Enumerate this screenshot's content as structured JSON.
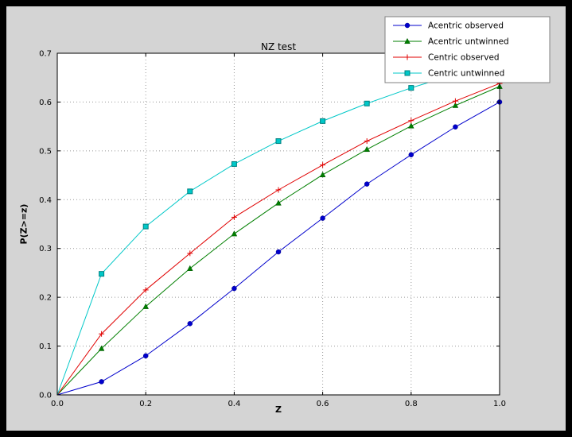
{
  "window": {
    "outer_bg": "#000000",
    "figure_bg": "#d4d4d4"
  },
  "chart_data": {
    "type": "line",
    "title": "NZ test",
    "xlabel": "Z",
    "ylabel": "P(Z>=z)",
    "xlim": [
      0.0,
      1.0
    ],
    "ylim": [
      0.0,
      0.7
    ],
    "xticks": [
      0.0,
      0.2,
      0.4,
      0.6,
      0.8,
      1.0
    ],
    "yticks": [
      0.0,
      0.1,
      0.2,
      0.3,
      0.4,
      0.5,
      0.6,
      0.7
    ],
    "grid": {
      "on": true,
      "style": "dotted",
      "color": "#999999"
    },
    "plot_bg": "#ffffff",
    "frame_color": "#000000",
    "legend_position": "upper-right",
    "x": [
      0.0,
      0.1,
      0.2,
      0.3,
      0.4,
      0.5,
      0.6,
      0.7,
      0.8,
      0.9,
      1.0
    ],
    "series": [
      {
        "name": "Acentric observed",
        "color": "#0000cc",
        "marker": "circle",
        "marker_edge": "#000088",
        "values": [
          0.0,
          0.027,
          0.08,
          0.146,
          0.218,
          0.293,
          0.362,
          0.432,
          0.492,
          0.549,
          0.6
        ]
      },
      {
        "name": "Acentric untwinned",
        "color": "#007f00",
        "marker": "triangle-up",
        "marker_edge": "#005500",
        "values": [
          0.0,
          0.095,
          0.181,
          0.259,
          0.33,
          0.393,
          0.451,
          0.503,
          0.551,
          0.593,
          0.632
        ]
      },
      {
        "name": "Centric observed",
        "color": "#e00000",
        "marker": "plus",
        "marker_edge": "#e00000",
        "values": [
          0.0,
          0.125,
          0.215,
          0.29,
          0.364,
          0.42,
          0.471,
          0.52,
          0.562,
          0.602,
          0.638
        ]
      },
      {
        "name": "Centric untwinned",
        "color": "#00c8c8",
        "marker": "square",
        "marker_edge": "#008080",
        "values": [
          0.0,
          0.248,
          0.345,
          0.417,
          0.473,
          0.52,
          0.561,
          0.597,
          0.629,
          0.657,
          0.683
        ]
      }
    ]
  }
}
